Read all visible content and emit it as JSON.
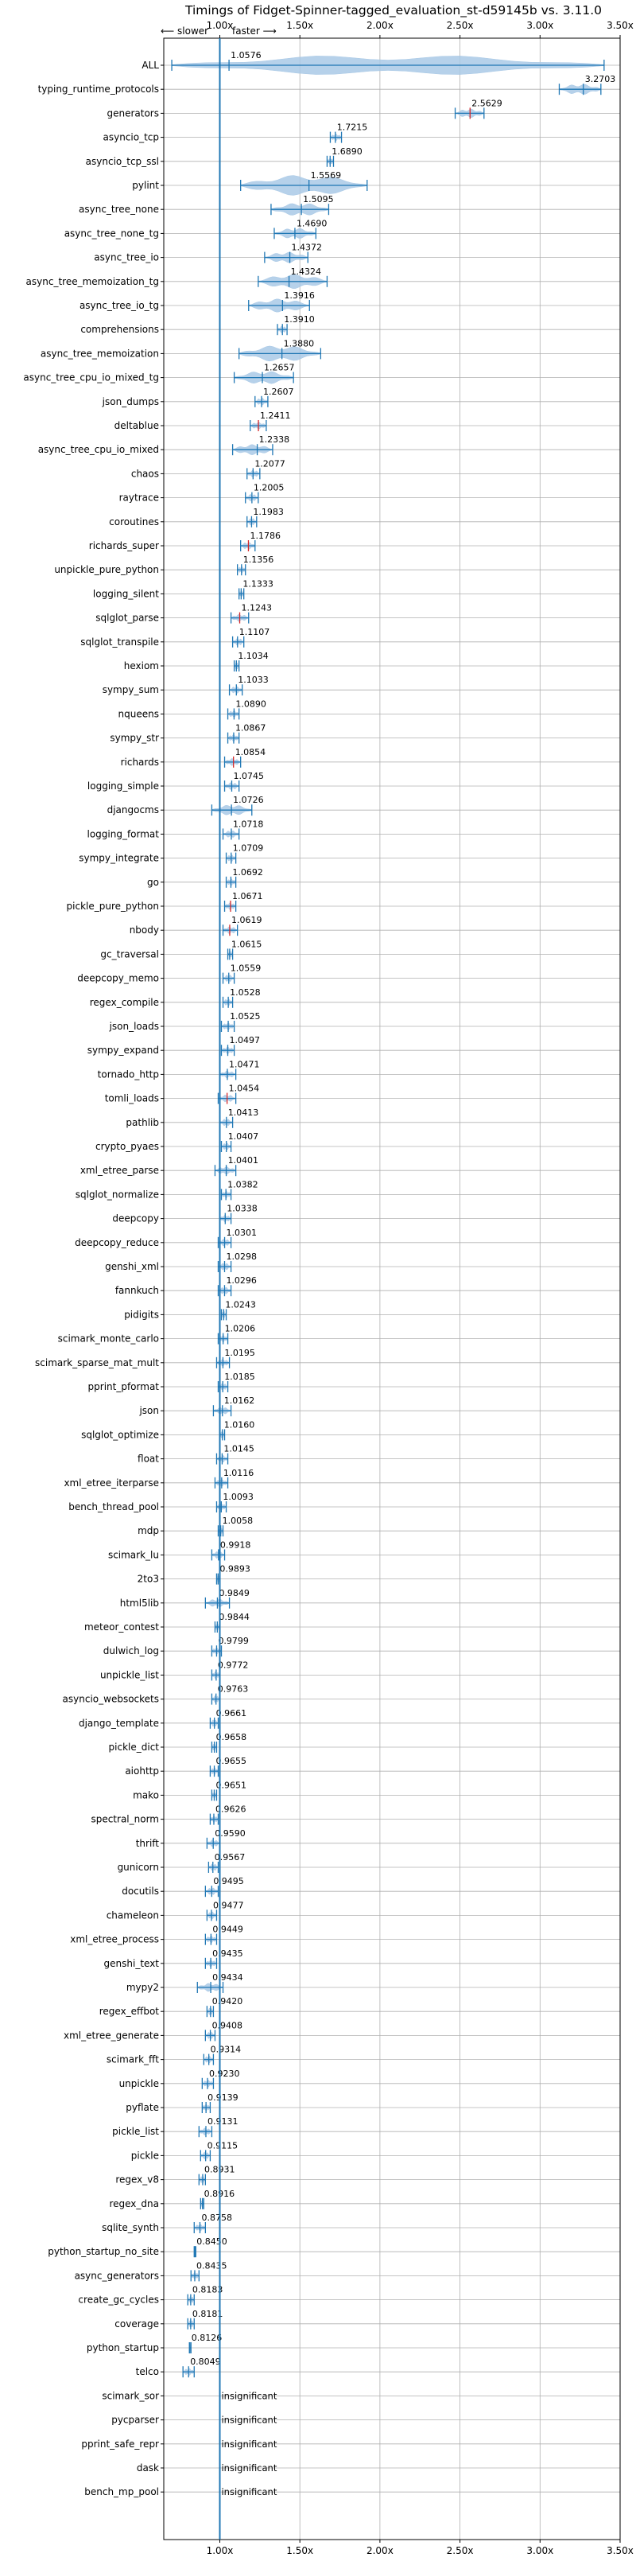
{
  "chart_data": {
    "type": "violin",
    "title": "Timings of Fidget-Spinner-tagged_evaluation_st-d59145b vs. 3.11.0",
    "direction_note": {
      "left": "⟵ slower",
      "right": "faster ⟶"
    },
    "xlabel": "",
    "ylabel": "",
    "xlim": [
      0.65,
      3.5
    ],
    "x_ticks": [
      {
        "value": 1.0,
        "label": "1.00x"
      },
      {
        "value": 1.5,
        "label": "1.50x"
      },
      {
        "value": 2.0,
        "label": "2.00x"
      },
      {
        "value": 2.5,
        "label": "2.50x"
      },
      {
        "value": 3.0,
        "label": "3.00x"
      },
      {
        "value": 3.5,
        "label": "3.50x"
      }
    ],
    "grid": true,
    "colors": {
      "violin": "#1f77b4",
      "violin_fill": "#a9c9e6",
      "highlight": "#d62728",
      "grid": "#b0b0b0"
    },
    "insignificant_label": "insignificant",
    "rows": [
      {
        "name": "ALL",
        "mean": 1.0576,
        "min": 0.7,
        "max": 3.4,
        "label": "1.0576"
      },
      {
        "name": "typing_runtime_protocols",
        "mean": 3.2703,
        "min": 3.12,
        "max": 3.38,
        "label": "3.2703"
      },
      {
        "name": "generators",
        "mean": 2.5629,
        "min": 2.47,
        "max": 2.65,
        "label": "2.5629",
        "red": true
      },
      {
        "name": "asyncio_tcp",
        "mean": 1.7215,
        "min": 1.69,
        "max": 1.76,
        "label": "1.7215"
      },
      {
        "name": "asyncio_tcp_ssl",
        "mean": 1.689,
        "min": 1.67,
        "max": 1.71,
        "label": "1.6890"
      },
      {
        "name": "pylint",
        "mean": 1.5569,
        "min": 1.13,
        "max": 1.92,
        "label": "1.5569"
      },
      {
        "name": "async_tree_none",
        "mean": 1.5095,
        "min": 1.32,
        "max": 1.68,
        "label": "1.5095"
      },
      {
        "name": "async_tree_none_tg",
        "mean": 1.469,
        "min": 1.34,
        "max": 1.6,
        "label": "1.4690"
      },
      {
        "name": "async_tree_io",
        "mean": 1.4372,
        "min": 1.28,
        "max": 1.55,
        "label": "1.4372"
      },
      {
        "name": "async_tree_memoization_tg",
        "mean": 1.4324,
        "min": 1.24,
        "max": 1.67,
        "label": "1.4324"
      },
      {
        "name": "async_tree_io_tg",
        "mean": 1.3916,
        "min": 1.18,
        "max": 1.56,
        "label": "1.3916"
      },
      {
        "name": "comprehensions",
        "mean": 1.391,
        "min": 1.36,
        "max": 1.42,
        "label": "1.3910"
      },
      {
        "name": "async_tree_memoization",
        "mean": 1.388,
        "min": 1.12,
        "max": 1.63,
        "label": "1.3880"
      },
      {
        "name": "async_tree_cpu_io_mixed_tg",
        "mean": 1.2657,
        "min": 1.09,
        "max": 1.46,
        "label": "1.2657"
      },
      {
        "name": "json_dumps",
        "mean": 1.2607,
        "min": 1.22,
        "max": 1.3,
        "label": "1.2607"
      },
      {
        "name": "deltablue",
        "mean": 1.2411,
        "min": 1.19,
        "max": 1.29,
        "label": "1.2411",
        "red": true
      },
      {
        "name": "async_tree_cpu_io_mixed",
        "mean": 1.2338,
        "min": 1.08,
        "max": 1.33,
        "label": "1.2338"
      },
      {
        "name": "chaos",
        "mean": 1.2077,
        "min": 1.17,
        "max": 1.25,
        "label": "1.2077"
      },
      {
        "name": "raytrace",
        "mean": 1.2005,
        "min": 1.16,
        "max": 1.24,
        "label": "1.2005"
      },
      {
        "name": "coroutines",
        "mean": 1.1983,
        "min": 1.17,
        "max": 1.23,
        "label": "1.1983"
      },
      {
        "name": "richards_super",
        "mean": 1.1786,
        "min": 1.13,
        "max": 1.22,
        "label": "1.1786",
        "red": true
      },
      {
        "name": "unpickle_pure_python",
        "mean": 1.1356,
        "min": 1.11,
        "max": 1.16,
        "label": "1.1356"
      },
      {
        "name": "logging_silent",
        "mean": 1.1333,
        "min": 1.12,
        "max": 1.15,
        "label": "1.1333"
      },
      {
        "name": "sqlglot_parse",
        "mean": 1.1243,
        "min": 1.07,
        "max": 1.18,
        "label": "1.1243",
        "red": true
      },
      {
        "name": "sqlglot_transpile",
        "mean": 1.1107,
        "min": 1.08,
        "max": 1.15,
        "label": "1.1107"
      },
      {
        "name": "hexiom",
        "mean": 1.1034,
        "min": 1.09,
        "max": 1.12,
        "label": "1.1034"
      },
      {
        "name": "sympy_sum",
        "mean": 1.1033,
        "min": 1.06,
        "max": 1.14,
        "label": "1.1033"
      },
      {
        "name": "nqueens",
        "mean": 1.089,
        "min": 1.05,
        "max": 1.12,
        "label": "1.0890"
      },
      {
        "name": "sympy_str",
        "mean": 1.0867,
        "min": 1.05,
        "max": 1.12,
        "label": "1.0867"
      },
      {
        "name": "richards",
        "mean": 1.0854,
        "min": 1.03,
        "max": 1.13,
        "label": "1.0854",
        "red": true
      },
      {
        "name": "logging_simple",
        "mean": 1.0745,
        "min": 1.03,
        "max": 1.12,
        "label": "1.0745"
      },
      {
        "name": "djangocms",
        "mean": 1.0726,
        "min": 0.95,
        "max": 1.2,
        "label": "1.0726"
      },
      {
        "name": "logging_format",
        "mean": 1.0718,
        "min": 1.02,
        "max": 1.12,
        "label": "1.0718"
      },
      {
        "name": "sympy_integrate",
        "mean": 1.0709,
        "min": 1.04,
        "max": 1.1,
        "label": "1.0709"
      },
      {
        "name": "go",
        "mean": 1.0692,
        "min": 1.04,
        "max": 1.1,
        "label": "1.0692"
      },
      {
        "name": "pickle_pure_python",
        "mean": 1.0671,
        "min": 1.03,
        "max": 1.1,
        "label": "1.0671",
        "red": true
      },
      {
        "name": "nbody",
        "mean": 1.0619,
        "min": 1.02,
        "max": 1.11,
        "label": "1.0619",
        "red": true
      },
      {
        "name": "gc_traversal",
        "mean": 1.0615,
        "min": 1.05,
        "max": 1.08,
        "label": "1.0615"
      },
      {
        "name": "deepcopy_memo",
        "mean": 1.0559,
        "min": 1.02,
        "max": 1.09,
        "label": "1.0559"
      },
      {
        "name": "regex_compile",
        "mean": 1.0528,
        "min": 1.02,
        "max": 1.08,
        "label": "1.0528"
      },
      {
        "name": "json_loads",
        "mean": 1.0525,
        "min": 1.01,
        "max": 1.09,
        "label": "1.0525"
      },
      {
        "name": "sympy_expand",
        "mean": 1.0497,
        "min": 1.01,
        "max": 1.09,
        "label": "1.0497"
      },
      {
        "name": "tornado_http",
        "mean": 1.0471,
        "min": 1.0,
        "max": 1.1,
        "label": "1.0471"
      },
      {
        "name": "tomli_loads",
        "mean": 1.0454,
        "min": 0.99,
        "max": 1.1,
        "label": "1.0454",
        "red": true
      },
      {
        "name": "pathlib",
        "mean": 1.0413,
        "min": 1.0,
        "max": 1.08,
        "label": "1.0413"
      },
      {
        "name": "crypto_pyaes",
        "mean": 1.0407,
        "min": 1.01,
        "max": 1.07,
        "label": "1.0407"
      },
      {
        "name": "xml_etree_parse",
        "mean": 1.0401,
        "min": 0.97,
        "max": 1.1,
        "label": "1.0401"
      },
      {
        "name": "sqlglot_normalize",
        "mean": 1.0382,
        "min": 1.01,
        "max": 1.07,
        "label": "1.0382"
      },
      {
        "name": "deepcopy",
        "mean": 1.0338,
        "min": 1.0,
        "max": 1.07,
        "label": "1.0338"
      },
      {
        "name": "deepcopy_reduce",
        "mean": 1.0301,
        "min": 0.99,
        "max": 1.07,
        "label": "1.0301"
      },
      {
        "name": "genshi_xml",
        "mean": 1.0298,
        "min": 0.99,
        "max": 1.07,
        "label": "1.0298"
      },
      {
        "name": "fannkuch",
        "mean": 1.0296,
        "min": 0.99,
        "max": 1.07,
        "label": "1.0296"
      },
      {
        "name": "pidigits",
        "mean": 1.0243,
        "min": 1.01,
        "max": 1.04,
        "label": "1.0243"
      },
      {
        "name": "scimark_monte_carlo",
        "mean": 1.0206,
        "min": 0.99,
        "max": 1.05,
        "label": "1.0206"
      },
      {
        "name": "scimark_sparse_mat_mult",
        "mean": 1.0195,
        "min": 0.98,
        "max": 1.06,
        "label": "1.0195"
      },
      {
        "name": "pprint_pformat",
        "mean": 1.0185,
        "min": 0.99,
        "max": 1.05,
        "label": "1.0185"
      },
      {
        "name": "json",
        "mean": 1.0162,
        "min": 0.96,
        "max": 1.07,
        "label": "1.0162"
      },
      {
        "name": "sqlglot_optimize",
        "mean": 1.016,
        "min": 1.0,
        "max": 1.03,
        "label": "1.0160"
      },
      {
        "name": "float",
        "mean": 1.0145,
        "min": 0.98,
        "max": 1.05,
        "label": "1.0145"
      },
      {
        "name": "xml_etree_iterparse",
        "mean": 1.0116,
        "min": 0.97,
        "max": 1.05,
        "label": "1.0116"
      },
      {
        "name": "bench_thread_pool",
        "mean": 1.0093,
        "min": 0.98,
        "max": 1.04,
        "label": "1.0093"
      },
      {
        "name": "mdp",
        "mean": 1.0058,
        "min": 0.99,
        "max": 1.02,
        "label": "1.0058"
      },
      {
        "name": "scimark_lu",
        "mean": 0.9918,
        "min": 0.95,
        "max": 1.03,
        "label": "0.9918"
      },
      {
        "name": "2to3",
        "mean": 0.9893,
        "min": 0.98,
        "max": 1.0,
        "label": "0.9893"
      },
      {
        "name": "html5lib",
        "mean": 0.9849,
        "min": 0.91,
        "max": 1.06,
        "label": "0.9849"
      },
      {
        "name": "meteor_contest",
        "mean": 0.9844,
        "min": 0.97,
        "max": 1.0,
        "label": "0.9844"
      },
      {
        "name": "dulwich_log",
        "mean": 0.9799,
        "min": 0.95,
        "max": 1.01,
        "label": "0.9799"
      },
      {
        "name": "unpickle_list",
        "mean": 0.9772,
        "min": 0.95,
        "max": 1.0,
        "label": "0.9772"
      },
      {
        "name": "asyncio_websockets",
        "mean": 0.9763,
        "min": 0.95,
        "max": 1.0,
        "label": "0.9763"
      },
      {
        "name": "django_template",
        "mean": 0.9661,
        "min": 0.94,
        "max": 0.99,
        "label": "0.9661"
      },
      {
        "name": "pickle_dict",
        "mean": 0.9658,
        "min": 0.95,
        "max": 0.98,
        "label": "0.9658"
      },
      {
        "name": "aiohttp",
        "mean": 0.9655,
        "min": 0.94,
        "max": 0.99,
        "label": "0.9655"
      },
      {
        "name": "mako",
        "mean": 0.9651,
        "min": 0.95,
        "max": 0.98,
        "label": "0.9651"
      },
      {
        "name": "spectral_norm",
        "mean": 0.9626,
        "min": 0.94,
        "max": 0.99,
        "label": "0.9626"
      },
      {
        "name": "thrift",
        "mean": 0.959,
        "min": 0.92,
        "max": 1.0,
        "label": "0.9590"
      },
      {
        "name": "gunicorn",
        "mean": 0.9567,
        "min": 0.93,
        "max": 0.99,
        "label": "0.9567"
      },
      {
        "name": "docutils",
        "mean": 0.9495,
        "min": 0.91,
        "max": 0.99,
        "label": "0.9495"
      },
      {
        "name": "chameleon",
        "mean": 0.9477,
        "min": 0.92,
        "max": 0.98,
        "label": "0.9477"
      },
      {
        "name": "xml_etree_process",
        "mean": 0.9449,
        "min": 0.91,
        "max": 0.98,
        "label": "0.9449"
      },
      {
        "name": "genshi_text",
        "mean": 0.9435,
        "min": 0.91,
        "max": 0.98,
        "label": "0.9435"
      },
      {
        "name": "mypy2",
        "mean": 0.9434,
        "min": 0.86,
        "max": 1.02,
        "label": "0.9434"
      },
      {
        "name": "regex_effbot",
        "mean": 0.942,
        "min": 0.92,
        "max": 0.96,
        "label": "0.9420"
      },
      {
        "name": "xml_etree_generate",
        "mean": 0.9408,
        "min": 0.91,
        "max": 0.97,
        "label": "0.9408"
      },
      {
        "name": "scimark_fft",
        "mean": 0.9314,
        "min": 0.9,
        "max": 0.96,
        "label": "0.9314"
      },
      {
        "name": "unpickle",
        "mean": 0.923,
        "min": 0.89,
        "max": 0.96,
        "label": "0.9230"
      },
      {
        "name": "pyflate",
        "mean": 0.9139,
        "min": 0.89,
        "max": 0.94,
        "label": "0.9139"
      },
      {
        "name": "pickle_list",
        "mean": 0.9131,
        "min": 0.87,
        "max": 0.95,
        "label": "0.9131"
      },
      {
        "name": "pickle",
        "mean": 0.9115,
        "min": 0.88,
        "max": 0.94,
        "label": "0.9115"
      },
      {
        "name": "regex_v8",
        "mean": 0.8931,
        "min": 0.87,
        "max": 0.91,
        "label": "0.8931"
      },
      {
        "name": "regex_dna",
        "mean": 0.8916,
        "min": 0.88,
        "max": 0.9,
        "label": "0.8916"
      },
      {
        "name": "sqlite_synth",
        "mean": 0.8758,
        "min": 0.84,
        "max": 0.91,
        "label": "0.8758"
      },
      {
        "name": "python_startup_no_site",
        "mean": 0.845,
        "min": 0.84,
        "max": 0.85,
        "label": "0.8450"
      },
      {
        "name": "async_generators",
        "mean": 0.8435,
        "min": 0.82,
        "max": 0.87,
        "label": "0.8435"
      },
      {
        "name": "create_gc_cycles",
        "mean": 0.8183,
        "min": 0.8,
        "max": 0.84,
        "label": "0.8183"
      },
      {
        "name": "coverage",
        "mean": 0.8181,
        "min": 0.8,
        "max": 0.84,
        "label": "0.8181"
      },
      {
        "name": "python_startup",
        "mean": 0.8126,
        "min": 0.81,
        "max": 0.82,
        "label": "0.8126"
      },
      {
        "name": "telco",
        "mean": 0.8049,
        "min": 0.77,
        "max": 0.84,
        "label": "0.8049"
      },
      {
        "name": "scimark_sor",
        "insignificant": true
      },
      {
        "name": "pycparser",
        "insignificant": true
      },
      {
        "name": "pprint_safe_repr",
        "insignificant": true
      },
      {
        "name": "dask",
        "insignificant": true
      },
      {
        "name": "bench_mp_pool",
        "insignificant": true
      }
    ]
  }
}
